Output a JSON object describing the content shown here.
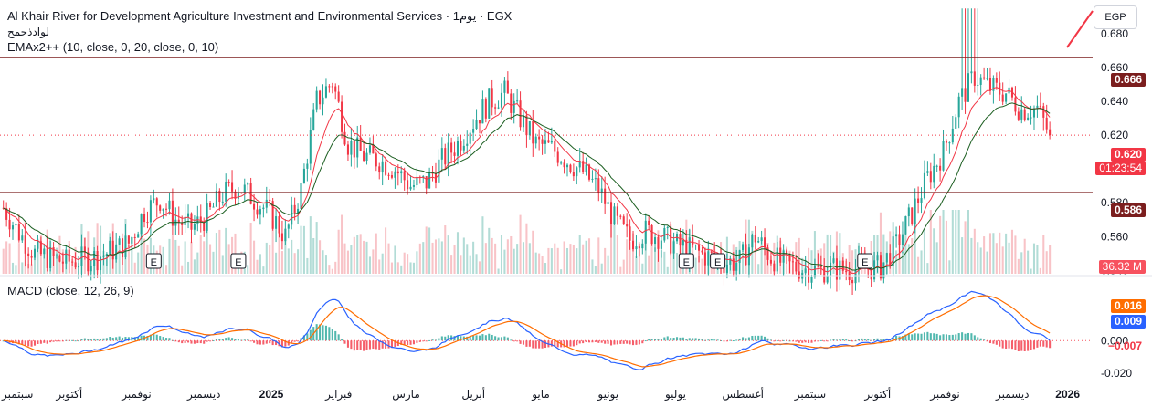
{
  "header": {
    "title": "Al Khair River for Development Agriculture Investment and Environmental Services · 1يوم · EGX",
    "subtitle": "لوادذجمح",
    "indicator": "EMAx2++ (10, close, 0, 20, close, 0, 10)"
  },
  "currency_button": "EGP",
  "macd_legend": "MACD (close, 12, 26, 9)",
  "price_tags": {
    "resistance": "0.666",
    "last_price": "0.620",
    "countdown": "01:23:54",
    "support": "0.586",
    "volume": "36.32 M"
  },
  "macd_tags": {
    "signal": "0.016",
    "macd": "0.009",
    "histogram": "−0.007"
  },
  "colors": {
    "up": "#26a69a",
    "down": "#f23645",
    "ema_fast": "#f23645",
    "ema_slow": "#1b5e20",
    "level_line": "#7b1e1e",
    "macd_line": "#2962ff",
    "signal_line": "#ff6d00",
    "hist_up": "#26a69a",
    "hist_down": "#f23645"
  },
  "chart_data": [
    {
      "type": "candlestick",
      "price_axis_ticks": [
        0.54,
        0.56,
        0.58,
        0.6,
        0.62,
        0.64,
        0.66,
        0.68
      ],
      "ylim": [
        0.538,
        0.7
      ],
      "horizontal_levels": [
        0.666,
        0.586
      ],
      "last_price": 0.62,
      "earnings_markers": [
        "E",
        "E",
        "E",
        "E",
        "E"
      ],
      "time_axis_labels": [
        "سبتمبر",
        "أكتوبر",
        "نوفمبر",
        "ديسمبر",
        "2025",
        "فبراير",
        "مارس",
        "أبريل",
        "مايو",
        "يونيو",
        "يوليو",
        "أغسطس",
        "سبتمبر",
        "أكتوبر",
        "نوفمبر",
        "ديسمبر",
        "2026"
      ],
      "close_keyframes": [
        [
          0,
          0.577
        ],
        [
          5,
          0.562
        ],
        [
          10,
          0.55
        ],
        [
          20,
          0.545
        ],
        [
          30,
          0.548
        ],
        [
          40,
          0.556
        ],
        [
          45,
          0.575
        ],
        [
          50,
          0.582
        ],
        [
          55,
          0.57
        ],
        [
          60,
          0.565
        ],
        [
          65,
          0.572
        ],
        [
          70,
          0.585
        ],
        [
          75,
          0.59
        ],
        [
          80,
          0.582
        ],
        [
          85,
          0.574
        ],
        [
          90,
          0.56
        ],
        [
          95,
          0.588
        ],
        [
          100,
          0.64
        ],
        [
          105,
          0.652
        ],
        [
          110,
          0.615
        ],
        [
          115,
          0.608
        ],
        [
          120,
          0.605
        ],
        [
          125,
          0.6
        ],
        [
          130,
          0.59
        ],
        [
          135,
          0.592
        ],
        [
          140,
          0.605
        ],
        [
          145,
          0.615
        ],
        [
          150,
          0.628
        ],
        [
          155,
          0.64
        ],
        [
          160,
          0.645
        ],
        [
          165,
          0.63
        ],
        [
          170,
          0.615
        ],
        [
          175,
          0.612
        ],
        [
          180,
          0.605
        ],
        [
          185,
          0.598
        ],
        [
          190,
          0.588
        ],
        [
          195,
          0.57
        ],
        [
          200,
          0.558
        ],
        [
          205,
          0.563
        ],
        [
          210,
          0.56
        ],
        [
          215,
          0.555
        ],
        [
          220,
          0.552
        ],
        [
          225,
          0.548
        ],
        [
          230,
          0.545
        ],
        [
          235,
          0.545
        ],
        [
          240,
          0.56
        ],
        [
          245,
          0.548
        ],
        [
          250,
          0.543
        ],
        [
          255,
          0.541
        ],
        [
          260,
          0.54
        ],
        [
          265,
          0.541
        ],
        [
          270,
          0.54
        ],
        [
          275,
          0.541
        ],
        [
          280,
          0.542
        ],
        [
          285,
          0.555
        ],
        [
          290,
          0.574
        ],
        [
          295,
          0.595
        ],
        [
          300,
          0.61
        ],
        [
          305,
          0.64
        ],
        [
          310,
          0.655
        ],
        [
          315,
          0.648
        ],
        [
          320,
          0.645
        ],
        [
          325,
          0.635
        ],
        [
          330,
          0.636
        ],
        [
          334,
          0.62
        ]
      ],
      "volume_last": "36.32 M"
    },
    {
      "type": "macd",
      "params": [
        12,
        26,
        9
      ],
      "yticks": [
        0.0,
        -0.02
      ],
      "ylim": [
        -0.026,
        0.038
      ],
      "macd_last": 0.009,
      "signal_last": 0.016,
      "histogram_last": -0.007
    }
  ]
}
